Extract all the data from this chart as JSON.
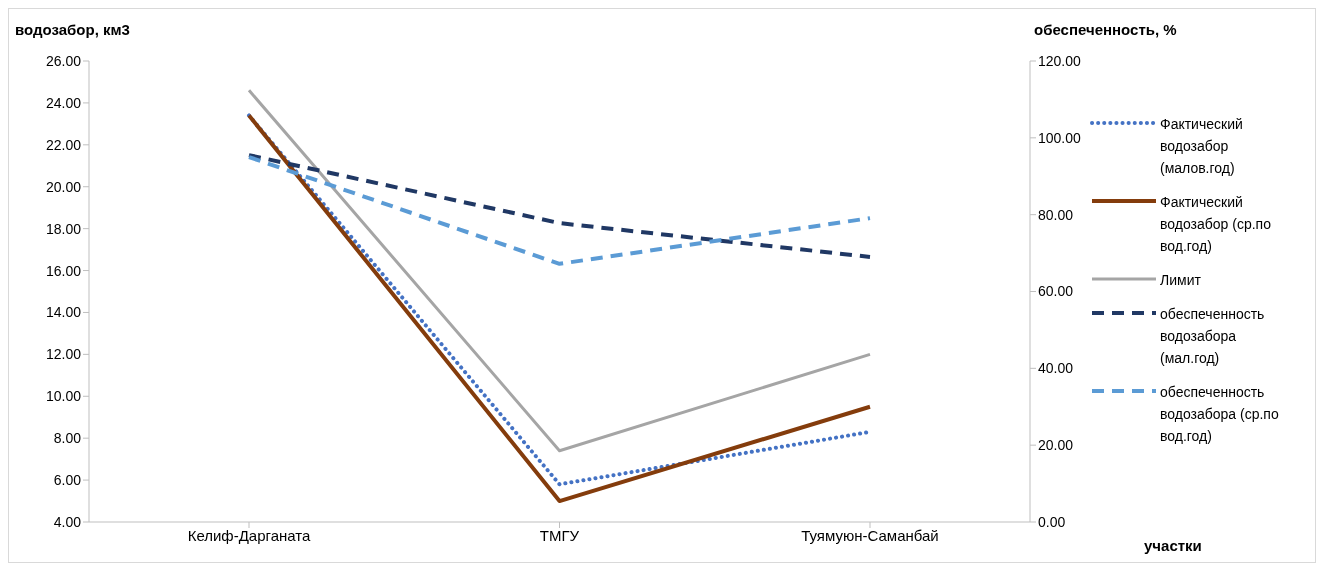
{
  "chart_data": {
    "type": "line",
    "ylabel": "водозабор, км3",
    "y2label": "обеспеченность, %",
    "xlabel": "участки",
    "categories": [
      "Келиф-Дарганата",
      "ТМГУ",
      "Туямуюн-Саманбай"
    ],
    "series": [
      {
        "name": "Фактический водозабор (малов.год)",
        "color": "#4472c4",
        "line_style": "dotted",
        "values": [
          23.4,
          5.8,
          8.3
        ]
      },
      {
        "name": "Фактический водозабор (ср.по вод.год)",
        "color": "#843c0c",
        "line_style": "solid",
        "values": [
          23.4,
          5.0,
          9.5
        ]
      },
      {
        "name": "Лимит",
        "color": "#a5a5a5",
        "line_style": "solid",
        "values": [
          24.6,
          7.4,
          12.0
        ]
      },
      {
        "name": "обеспеченность водозабора (мал.год)",
        "color": "#203864",
        "line_style": "dashed",
        "axis": "y2",
        "values": [
          95.5,
          77.8,
          69.0
        ]
      },
      {
        "name": "обеспеченность водозабора (ср.по вод.год)",
        "color": "#5b9bd5",
        "line_style": "dashed",
        "axis": "y2",
        "values": [
          95.0,
          67.2,
          79.1
        ]
      }
    ],
    "ylim": [
      4,
      26
    ],
    "yticks": [
      {
        "value": 4,
        "label": "4.00"
      },
      {
        "value": 6,
        "label": "6.00"
      },
      {
        "value": 8,
        "label": "8.00"
      },
      {
        "value": 10,
        "label": "10.00"
      },
      {
        "value": 12,
        "label": "12.00"
      },
      {
        "value": 14,
        "label": "14.00"
      },
      {
        "value": 16,
        "label": "16.00"
      },
      {
        "value": 18,
        "label": "18.00"
      },
      {
        "value": 20,
        "label": "20.00"
      },
      {
        "value": 22,
        "label": "22.00"
      },
      {
        "value": 24,
        "label": "24.00"
      },
      {
        "value": 26,
        "label": "26.00"
      }
    ],
    "y2lim": [
      0,
      120
    ],
    "y2ticks": [
      {
        "value": 0,
        "label": "0.00"
      },
      {
        "value": 20,
        "label": "20.00"
      },
      {
        "value": 40,
        "label": "40.00"
      },
      {
        "value": 60,
        "label": "60.00"
      },
      {
        "value": 80,
        "label": "80.00"
      },
      {
        "value": 100,
        "label": "100.00"
      },
      {
        "value": 120,
        "label": "120.00"
      }
    ],
    "grid": false,
    "legend": "right",
    "marker": "none"
  }
}
